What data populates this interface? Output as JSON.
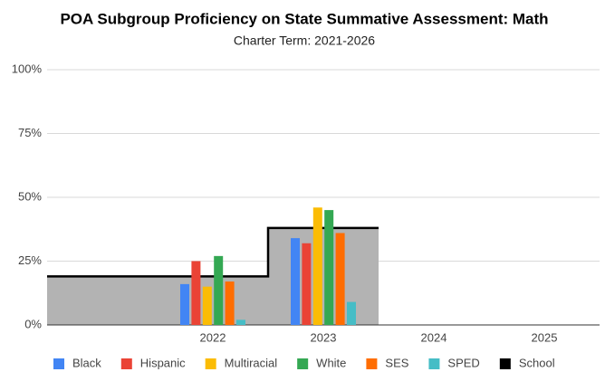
{
  "chart_data": {
    "type": "bar",
    "title": "POA Subgroup Proficiency on State Summative Assessment:  Math",
    "subtitle": "Charter Term:  2021-2026",
    "categories": [
      null,
      "2022",
      "2023",
      "2024",
      "2025"
    ],
    "series": [
      {
        "name": "Black",
        "color": "#4285f4",
        "values": [
          null,
          16,
          34,
          null,
          null
        ]
      },
      {
        "name": "Hispanic",
        "color": "#ea4335",
        "values": [
          null,
          25,
          32,
          null,
          null
        ]
      },
      {
        "name": "Multiracial",
        "color": "#fbbc04",
        "values": [
          null,
          15,
          46,
          null,
          null
        ]
      },
      {
        "name": "White",
        "color": "#34a853",
        "values": [
          null,
          27,
          45,
          null,
          null
        ]
      },
      {
        "name": "SES",
        "color": "#ff6d01",
        "values": [
          null,
          17,
          36,
          null,
          null
        ]
      },
      {
        "name": "SPED",
        "color": "#46bdc6",
        "values": [
          null,
          2,
          9,
          null,
          null
        ]
      },
      {
        "name": "School",
        "color": "#000000",
        "type": "stepped-area",
        "fill": "#b3b3b3",
        "values": [
          19,
          19,
          38,
          null,
          null
        ]
      }
    ],
    "ylim": [
      0,
      100
    ],
    "yticks": [
      {
        "value": 0,
        "label": "0%"
      },
      {
        "value": 25,
        "label": "25%"
      },
      {
        "value": 50,
        "label": "50%"
      },
      {
        "value": 75,
        "label": "75%"
      },
      {
        "value": 100,
        "label": "100%"
      }
    ],
    "grid": true,
    "legend": "bottom"
  }
}
